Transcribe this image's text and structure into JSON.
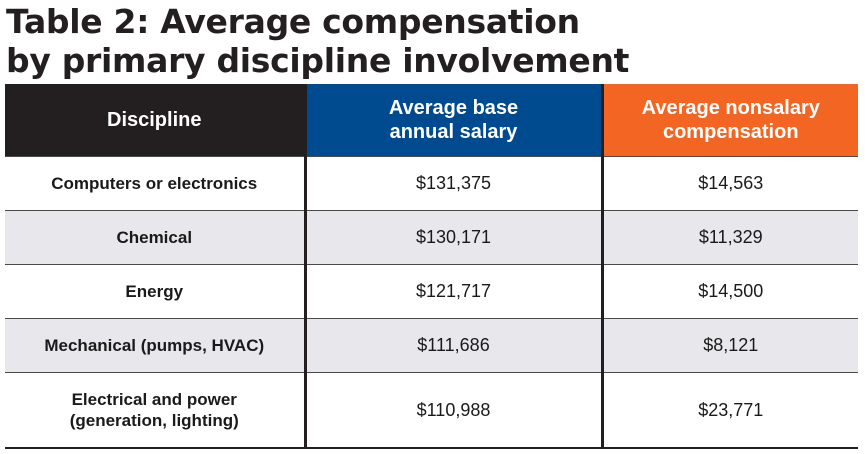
{
  "title": {
    "line1": "Table 2: Average compensation",
    "line2": "by primary discipline involvement"
  },
  "chart_data": {
    "type": "table",
    "title": "Table 2: Average compensation by primary discipline involvement",
    "columns": [
      "Discipline",
      "Average base annual salary",
      "Average nonsalary compensation"
    ],
    "header_colors": [
      "#231f20",
      "#004a8f",
      "#f26522"
    ],
    "rows": [
      {
        "discipline": "Computers or electronics",
        "base": "$131,375",
        "nonsalary": "$14,563"
      },
      {
        "discipline": "Chemical",
        "base": "$130,171",
        "nonsalary": "$11,329"
      },
      {
        "discipline": "Energy",
        "base": "$121,717",
        "nonsalary": "$14,500"
      },
      {
        "discipline": "Mechanical (pumps, HVAC)",
        "base": "$111,686",
        "nonsalary": "$8,121"
      },
      {
        "discipline": "Electrical and power (generation, lighting)",
        "base": "$110,988",
        "nonsalary": "$23,771"
      }
    ],
    "values_base": [
      131375,
      130171,
      121717,
      111686,
      110988
    ],
    "values_nonsalary": [
      14563,
      11329,
      14500,
      8121,
      23771
    ]
  },
  "header": {
    "discipline": "Discipline",
    "base": [
      "Average base",
      "annual salary"
    ],
    "nonsalary": [
      "Average nonsalary",
      "compensation"
    ]
  },
  "rows_display": [
    {
      "discipline": [
        "Computers or electronics"
      ],
      "base": "$131,375",
      "nonsalary": "$14,563"
    },
    {
      "discipline": [
        "Chemical"
      ],
      "base": "$130,171",
      "nonsalary": "$11,329"
    },
    {
      "discipline": [
        "Energy"
      ],
      "base": "$121,717",
      "nonsalary": "$14,500"
    },
    {
      "discipline": [
        "Mechanical (pumps, HVAC)"
      ],
      "base": "$111,686",
      "nonsalary": "$8,121"
    },
    {
      "discipline": [
        "Electrical and power",
        "(generation, lighting)"
      ],
      "base": "$110,988",
      "nonsalary": "$23,771"
    }
  ]
}
